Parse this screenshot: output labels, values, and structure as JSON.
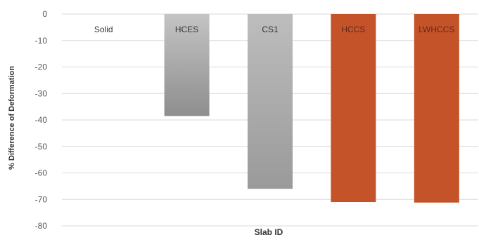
{
  "chart_data": {
    "type": "bar",
    "categories": [
      "Solid",
      "HCES",
      "CS1",
      "HCCS",
      "LWHCCS"
    ],
    "values": [
      0,
      -38.5,
      -66,
      -71,
      -71.2
    ],
    "bar_colors": [
      "#ffffff",
      "#9e9e9e",
      "#a8a8a8",
      "#c5532a",
      "#c5532a"
    ],
    "title": "",
    "xlabel": "Slab ID",
    "ylabel": "% Difference of Deformation",
    "ylim": [
      -80,
      0
    ],
    "yticks": [
      0,
      -10,
      -20,
      -30,
      -40,
      -50,
      -60,
      -70,
      -80
    ],
    "grid": true,
    "legend": "none"
  }
}
